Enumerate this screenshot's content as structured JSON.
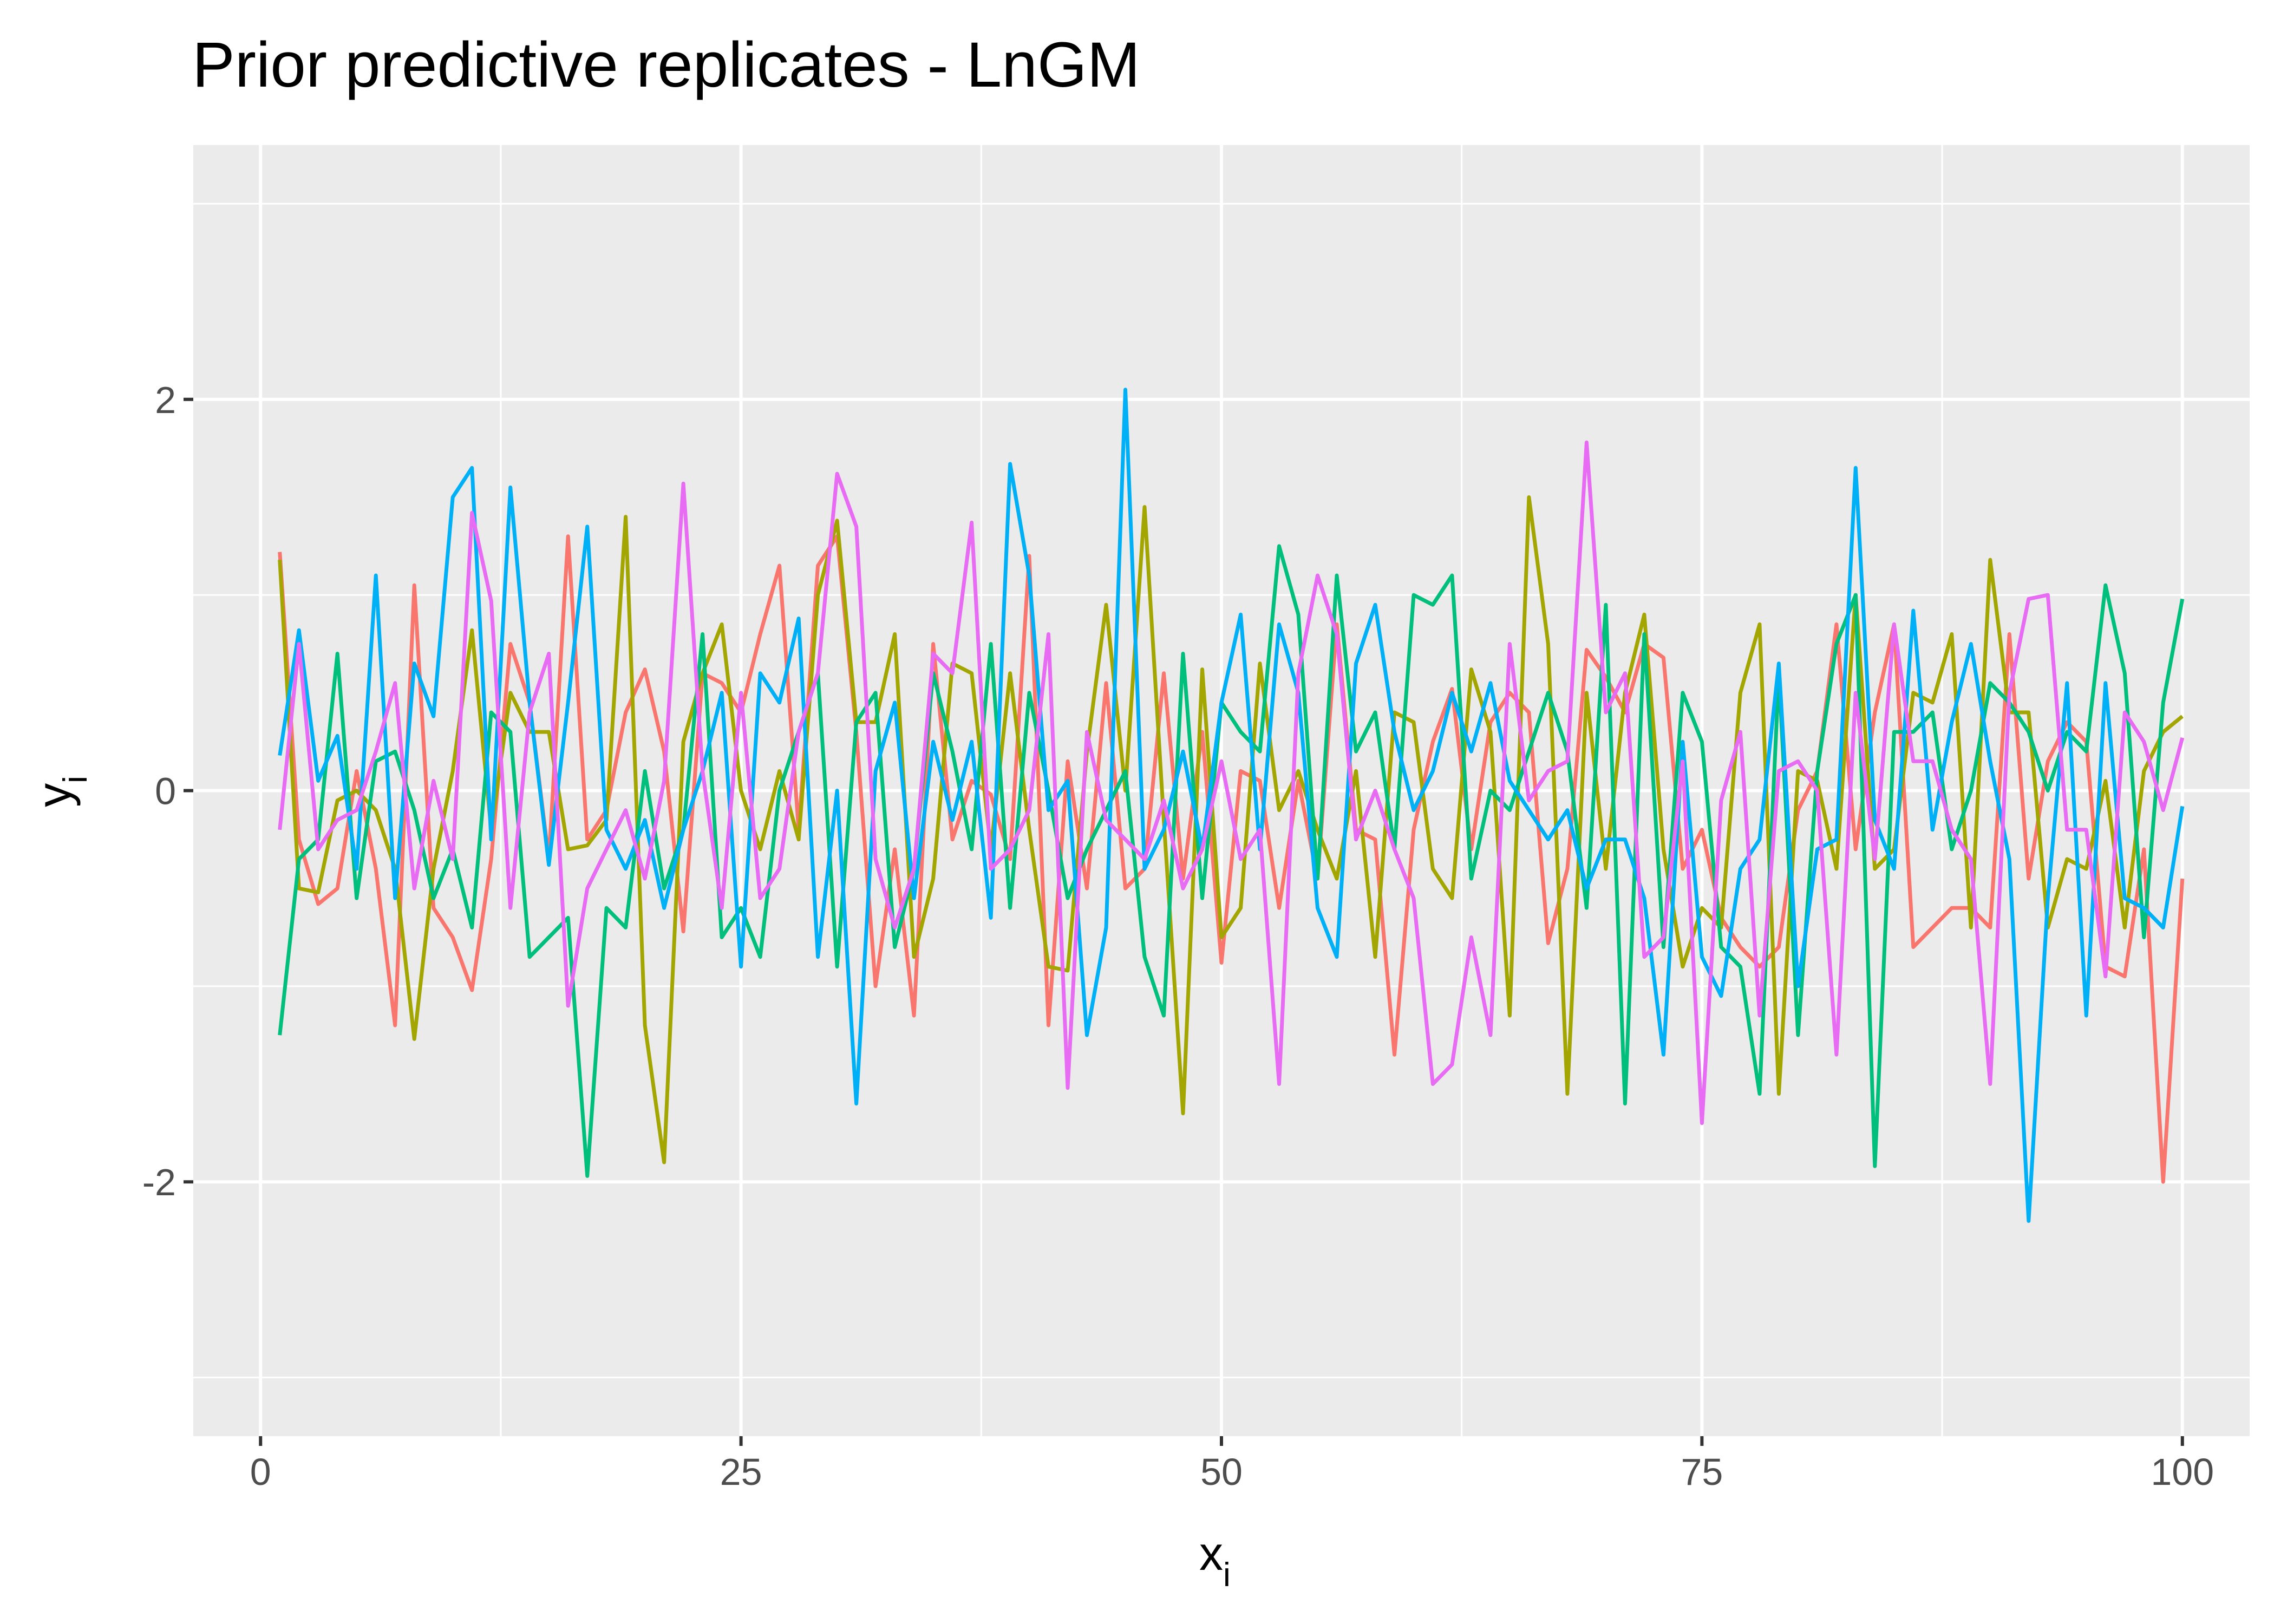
{
  "chart_data": {
    "type": "line",
    "title": "Prior predictive replicates - LnGM",
    "xlabel": "x",
    "xlabel_sub": "i",
    "ylabel": "y",
    "ylabel_sub": "i",
    "xlim": [
      -3.5,
      103.5
    ],
    "ylim": [
      -3.3,
      3.3
    ],
    "x_ticks": [
      0,
      25,
      50,
      75,
      100
    ],
    "y_ticks": [
      -2,
      0,
      2
    ],
    "x_tick_labels": [
      "0",
      "25",
      "50",
      "75",
      "100"
    ],
    "y_tick_labels": [
      "-2",
      "0",
      "2"
    ],
    "grid": true,
    "legend": "none",
    "series": [
      {
        "color": "#F8766D",
        "values": [
          1.22,
          -0.25,
          -0.58,
          -0.5,
          0.1,
          -0.4,
          -1.2,
          1.05,
          -0.6,
          -0.75,
          -1.02,
          -0.35,
          0.75,
          0.45,
          -0.35,
          1.3,
          -0.25,
          -0.1,
          0.4,
          0.62,
          0.2,
          -0.72,
          0.6,
          0.55,
          0.4,
          0.8,
          1.15,
          -0.2,
          1.15,
          1.3,
          0.3,
          -1.0,
          -0.3,
          -1.15,
          0.75,
          -0.25,
          0.05,
          -0.02,
          -0.35,
          1.2,
          -1.2,
          0.15,
          -0.5,
          0.55,
          -0.5,
          -0.4,
          0.6,
          -0.45,
          0.3,
          -0.88,
          0.1,
          0.05,
          -0.6,
          0.05,
          -0.45,
          0.85,
          -0.2,
          -0.25,
          -1.35,
          -0.2,
          0.25,
          0.52,
          -0.3,
          0.35,
          0.5,
          0.4,
          -0.78,
          -0.4,
          0.72,
          0.58,
          0.4,
          0.75,
          0.68,
          -0.4,
          -0.2,
          -0.65,
          -0.8,
          -0.9,
          -0.8,
          -0.1,
          0.1,
          0.85,
          -0.3,
          0.4,
          0.85,
          -0.8,
          -0.7,
          -0.6,
          -0.6,
          -0.7,
          0.8,
          -0.45,
          0.15,
          0.35,
          0.25,
          -0.9,
          -0.95,
          -0.3,
          -2.0,
          -0.45
        ]
      },
      {
        "color": "#A3A500",
        "values": [
          1.18,
          -0.5,
          -0.52,
          -0.05,
          0.0,
          -0.1,
          -0.4,
          -1.27,
          -0.4,
          0.1,
          0.82,
          -0.2,
          0.5,
          0.3,
          0.3,
          -0.3,
          -0.28,
          -0.15,
          1.4,
          -1.2,
          -1.9,
          0.25,
          0.6,
          0.85,
          0.0,
          -0.3,
          0.1,
          -0.25,
          1.0,
          1.38,
          0.35,
          0.35,
          0.8,
          -0.85,
          -0.45,
          0.65,
          0.6,
          -0.3,
          0.6,
          -0.2,
          -0.9,
          -0.92,
          0.2,
          0.95,
          0.0,
          1.45,
          -0.15,
          -1.65,
          0.62,
          -0.75,
          -0.6,
          0.65,
          -0.1,
          0.1,
          -0.2,
          -0.45,
          0.1,
          -0.85,
          0.4,
          0.35,
          -0.4,
          -0.55,
          0.62,
          0.3,
          -1.15,
          1.5,
          0.75,
          -1.55,
          0.5,
          -0.4,
          0.5,
          0.9,
          -0.3,
          -0.9,
          -0.6,
          -0.7,
          0.5,
          0.85,
          -1.55,
          0.1,
          0.05,
          -0.4,
          1.0,
          -0.4,
          -0.3,
          0.5,
          0.45,
          0.8,
          -0.7,
          1.18,
          0.4,
          0.4,
          -0.7,
          -0.35,
          -0.4,
          0.05,
          -0.7,
          0.1,
          0.3,
          0.38
        ]
      },
      {
        "color": "#00BF7D",
        "values": [
          -1.25,
          -0.35,
          -0.25,
          0.7,
          -0.55,
          0.15,
          0.2,
          -0.1,
          -0.55,
          -0.3,
          -0.7,
          0.4,
          0.3,
          -0.85,
          -0.75,
          -0.65,
          -1.97,
          -0.6,
          -0.7,
          0.1,
          -0.5,
          -0.2,
          0.8,
          -0.75,
          -0.6,
          -0.85,
          0.0,
          0.3,
          0.6,
          -0.9,
          0.35,
          0.5,
          -0.8,
          -0.4,
          0.6,
          0.2,
          -0.3,
          0.75,
          -0.6,
          0.5,
          0.0,
          -0.55,
          -0.3,
          -0.1,
          0.1,
          -0.85,
          -1.15,
          0.7,
          -0.55,
          0.45,
          0.3,
          0.2,
          1.25,
          0.9,
          -0.45,
          1.1,
          0.2,
          0.4,
          -0.3,
          1.0,
          0.95,
          1.1,
          -0.45,
          0.0,
          -0.1,
          0.2,
          0.5,
          0.2,
          -0.6,
          0.95,
          -1.6,
          0.8,
          -0.8,
          0.5,
          0.25,
          -0.8,
          -0.9,
          -1.55,
          0.6,
          -1.25,
          0.1,
          0.75,
          1.0,
          -1.92,
          0.3,
          0.3,
          0.4,
          -0.3,
          0.0,
          0.55,
          0.45,
          0.3,
          0.0,
          0.3,
          0.2,
          1.05,
          0.6,
          -0.75,
          0.45,
          0.98
        ]
      },
      {
        "color": "#00B0F6",
        "values": [
          0.18,
          0.82,
          0.05,
          0.28,
          -0.4,
          1.1,
          -0.55,
          0.65,
          0.38,
          1.5,
          1.65,
          -0.25,
          1.55,
          0.45,
          -0.38,
          0.45,
          1.35,
          -0.2,
          -0.4,
          -0.15,
          -0.6,
          -0.2,
          0.1,
          0.5,
          -0.9,
          0.6,
          0.45,
          0.88,
          -0.85,
          0.0,
          -1.6,
          0.1,
          0.45,
          -0.55,
          0.25,
          -0.15,
          0.25,
          -0.65,
          1.67,
          1.1,
          -0.1,
          0.05,
          -1.25,
          -0.7,
          2.05,
          -0.4,
          -0.2,
          0.2,
          -0.3,
          0.45,
          0.9,
          -0.3,
          0.85,
          0.5,
          -0.6,
          -0.85,
          0.65,
          0.95,
          0.3,
          -0.1,
          0.1,
          0.5,
          0.2,
          0.55,
          0.05,
          -0.1,
          -0.25,
          -0.1,
          -0.5,
          -0.25,
          -0.25,
          -0.55,
          -1.35,
          0.25,
          -0.85,
          -1.05,
          -0.4,
          -0.25,
          0.65,
          -1.0,
          -0.3,
          -0.25,
          1.65,
          -0.15,
          -0.4,
          0.92,
          -0.2,
          0.35,
          0.75,
          0.15,
          -0.35,
          -2.2,
          -0.55,
          0.55,
          -1.15,
          0.55,
          -0.55,
          -0.6,
          -0.7,
          -0.08
        ]
      },
      {
        "color": "#E76BF3",
        "values": [
          -0.2,
          0.75,
          -0.3,
          -0.15,
          -0.1,
          0.2,
          0.55,
          -0.5,
          0.05,
          -0.35,
          1.42,
          0.97,
          -0.6,
          0.4,
          0.7,
          -1.1,
          -0.5,
          -0.3,
          -0.1,
          -0.45,
          0.05,
          1.57,
          0.1,
          -0.6,
          0.5,
          -0.55,
          -0.4,
          0.3,
          0.6,
          1.62,
          1.35,
          -0.35,
          -0.7,
          -0.4,
          0.7,
          0.6,
          1.37,
          -0.4,
          -0.3,
          -0.1,
          0.8,
          -1.52,
          0.3,
          -0.15,
          -0.25,
          -0.35,
          -0.05,
          -0.5,
          -0.3,
          0.15,
          -0.35,
          -0.2,
          -1.5,
          0.6,
          1.1,
          0.8,
          -0.25,
          0.0,
          -0.3,
          -0.55,
          -1.5,
          -1.4,
          -0.75,
          -1.25,
          0.75,
          -0.05,
          0.1,
          0.15,
          1.78,
          0.4,
          0.6,
          -0.85,
          -0.75,
          0.15,
          -1.7,
          -0.05,
          0.3,
          -1.15,
          0.1,
          0.15,
          0.0,
          -1.35,
          0.5,
          -0.35,
          0.85,
          0.15,
          0.15,
          -0.2,
          -0.35,
          -1.5,
          0.5,
          0.98,
          1.0,
          -0.2,
          -0.2,
          -0.95,
          0.4,
          0.25,
          -0.1,
          0.27
        ]
      }
    ]
  }
}
